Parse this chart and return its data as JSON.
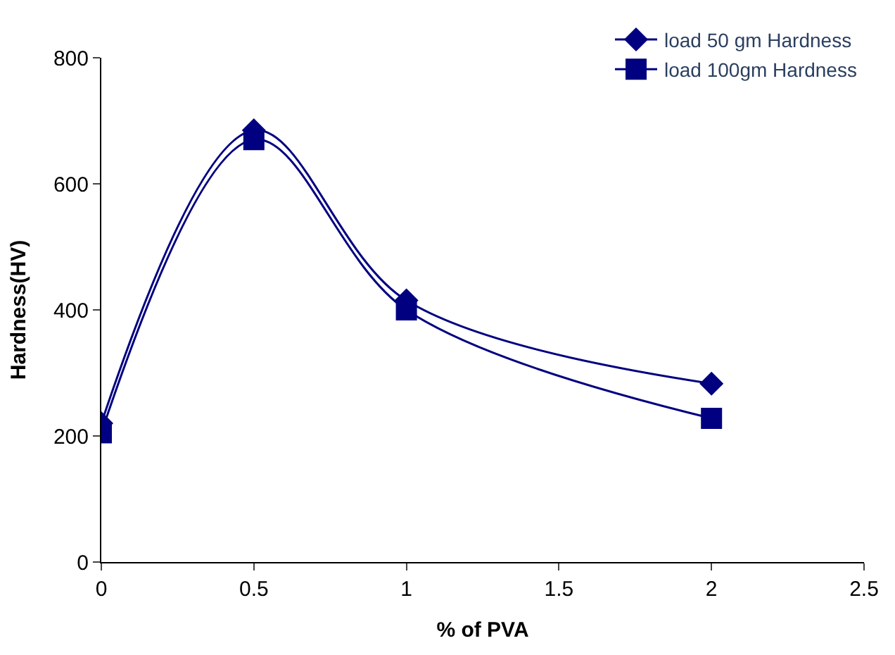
{
  "chart_data": {
    "type": "line",
    "xlabel": "% of PVA",
    "ylabel": "Hardness(HV)",
    "x": [
      0,
      0.5,
      1,
      2
    ],
    "series": [
      {
        "name": "load 50 gm Hardness",
        "color": "#000080",
        "marker": "diamond",
        "values": [
          220,
          685,
          415,
          283
        ]
      },
      {
        "name": "load 100gm Hardness",
        "color": "#000080",
        "marker": "square",
        "values": [
          205,
          670,
          400,
          228
        ]
      }
    ],
    "xlim": [
      0,
      2.5
    ],
    "xticks": [
      0,
      0.5,
      1,
      1.5,
      2,
      2.5
    ],
    "ylim": [
      0,
      800
    ],
    "yticks": [
      0,
      200,
      400,
      600,
      800
    ],
    "legend": "top right",
    "line_style": "solid"
  }
}
